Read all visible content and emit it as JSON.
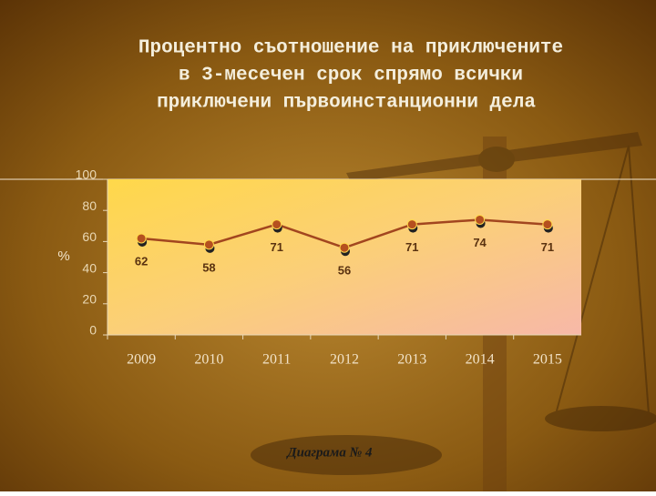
{
  "chart_data": {
    "type": "line",
    "title": [
      "Процентно съотношение на приключените",
      "в 3-месечен срок спрямо всички",
      "приключени първоинстанционни дела"
    ],
    "y_label": "%",
    "caption": "Диаграма № 4",
    "categories": [
      "2009",
      "2010",
      "2011",
      "2012",
      "2013",
      "2014",
      "2015"
    ],
    "values": [
      62,
      58,
      71,
      56,
      71,
      74,
      71
    ],
    "color": "#a2461f",
    "ylim": [
      0,
      100
    ],
    "yticks": [
      0,
      20,
      40,
      60,
      80,
      100
    ]
  }
}
